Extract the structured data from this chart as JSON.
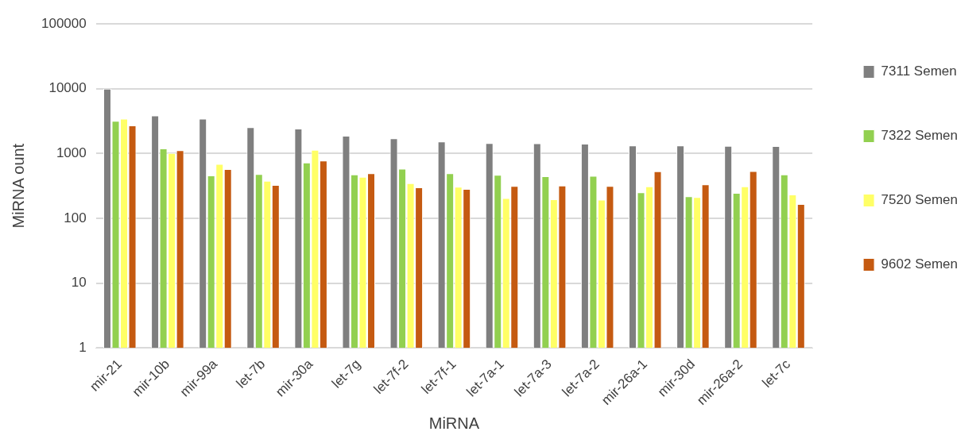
{
  "chart_data": {
    "type": "bar",
    "xlabel": "MiRNA",
    "ylabel": "MiRNA ount",
    "log": true,
    "grid": "y",
    "legend": "right",
    "categories": [
      "mir-21",
      "mir-10b",
      "mir-99a",
      "let-7b",
      "mir-30a",
      "let-7g",
      "let-7f-2",
      "let-7f-1",
      "let-7a-1",
      "let-7a-3",
      "let-7a-2",
      "mir-26a-1",
      "mir-30d",
      "mir-26a-2",
      "let-7c"
    ],
    "ylim": [
      1,
      100000
    ],
    "yticks": [
      1,
      10,
      100,
      1000,
      10000,
      100000
    ],
    "series": [
      {
        "name": "7311 Semen",
        "color": "#7f7f7f",
        "values": [
          10000,
          3870,
          3450,
          2540,
          2430,
          1880,
          1710,
          1535,
          1450,
          1435,
          1420,
          1330,
          1330,
          1315,
          1300
        ]
      },
      {
        "name": "7322 Semen",
        "color": "#92d050",
        "values": [
          3200,
          1200,
          460,
          483,
          726,
          475,
          582,
          497,
          469,
          447,
          451,
          252,
          218,
          247,
          475
        ]
      },
      {
        "name": "7520 Semen",
        "color": "#ffff66",
        "values": [
          3450,
          1020,
          690,
          378,
          1140,
          438,
          348,
          306,
          205,
          196,
          194,
          312,
          213,
          312,
          233
        ]
      },
      {
        "name": "9602 Semen",
        "color": "#c55a11",
        "values": [
          2720,
          1120,
          575,
          327,
          778,
          497,
          300,
          283,
          315,
          321,
          315,
          533,
          334,
          537,
          166
        ]
      }
    ]
  }
}
